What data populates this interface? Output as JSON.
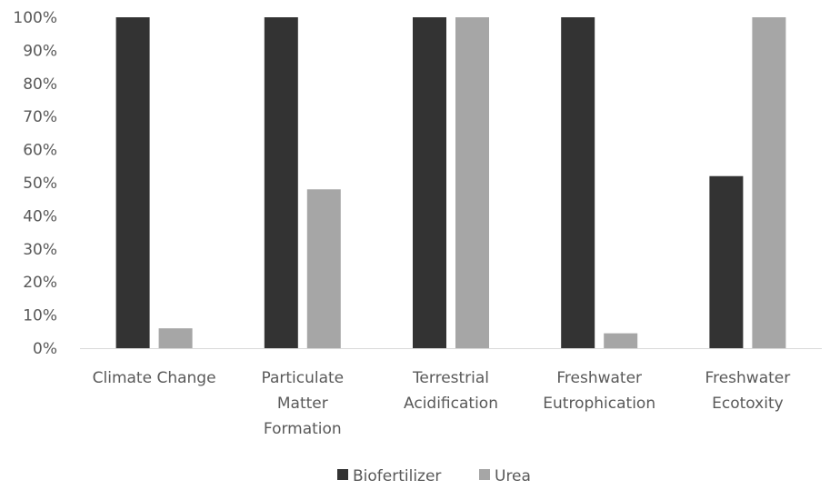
{
  "chart_data": {
    "type": "bar",
    "title": "",
    "xlabel": "",
    "ylabel": "",
    "ylim": [
      0,
      1
    ],
    "y_ticks": [
      "0%",
      "10%",
      "20%",
      "30%",
      "40%",
      "50%",
      "60%",
      "70%",
      "80%",
      "90%",
      "100%"
    ],
    "grid": false,
    "legend_position": "bottom",
    "categories": [
      [
        "Climate Change"
      ],
      [
        "Particulate",
        "Matter",
        "Formation"
      ],
      [
        "Terrestrial",
        "Acidification"
      ],
      [
        "Freshwater",
        "Eutrophication"
      ],
      [
        "Freshwater",
        "Ecotoxity"
      ]
    ],
    "series": [
      {
        "name": "Biofertilizer",
        "color": "#333333",
        "values": [
          1.0,
          1.0,
          1.0,
          1.0,
          0.52
        ]
      },
      {
        "name": "Urea",
        "color": "#a6a6a6",
        "values": [
          0.06,
          0.48,
          1.0,
          0.045,
          1.0
        ]
      }
    ]
  }
}
